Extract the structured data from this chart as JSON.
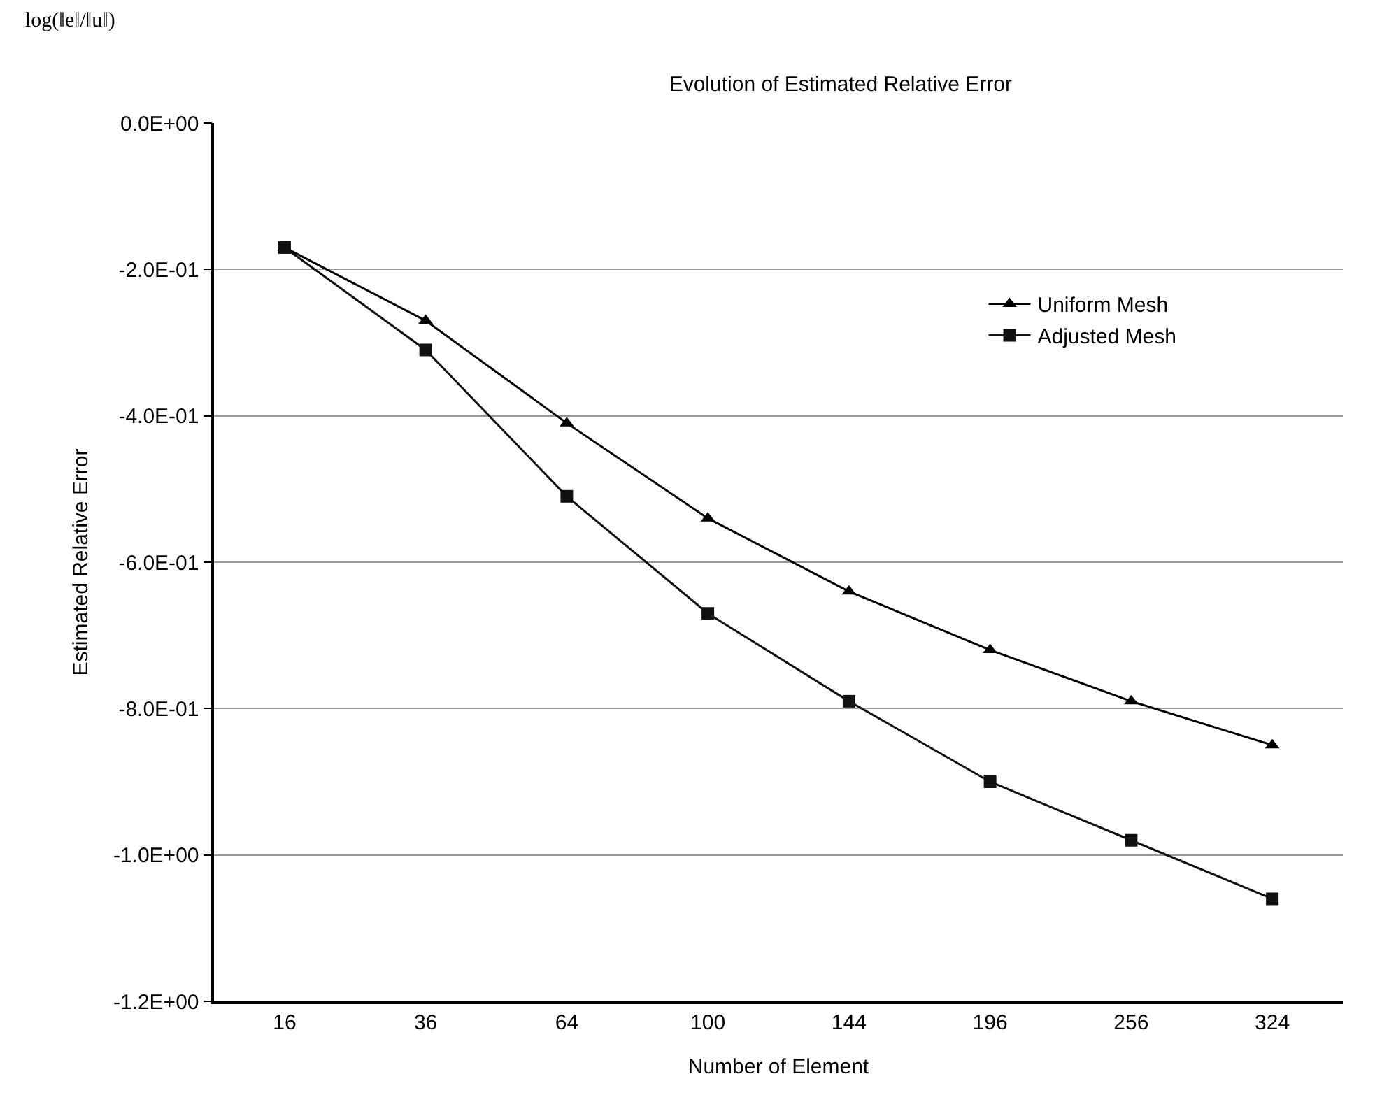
{
  "chart_data": {
    "type": "line",
    "title": "Evolution of Estimated Relative Error",
    "xlabel": "Number of Element",
    "ylabel": "Estimated Relative Error",
    "annotations": [
      "log(‖e‖/‖u‖)"
    ],
    "categories": [
      "16",
      "36",
      "64",
      "100",
      "144",
      "196",
      "256",
      "324"
    ],
    "series": [
      {
        "name": "Uniform Mesh",
        "color": "#000000",
        "marker": "triangle",
        "values": [
          -0.17,
          -0.27,
          -0.41,
          -0.54,
          -0.64,
          -0.72,
          -0.79,
          -0.85
        ]
      },
      {
        "name": "Adjusted Mesh",
        "color": "#111111",
        "marker": "square",
        "values": [
          -0.17,
          -0.31,
          -0.51,
          -0.67,
          -0.79,
          -0.9,
          -0.98,
          -1.06
        ]
      }
    ],
    "ylim": [
      -1.2,
      0
    ],
    "yticks": [
      {
        "value": -1.2,
        "label": "-1.2E+00"
      },
      {
        "value": -1.0,
        "label": "-1.0E+00"
      },
      {
        "value": -0.8,
        "label": "-8.0E-01"
      },
      {
        "value": -0.6,
        "label": "-6.0E-01"
      },
      {
        "value": -0.4,
        "label": "-4.0E-01"
      },
      {
        "value": -0.2,
        "label": "-2.0E-01"
      },
      {
        "value": 0,
        "label": "0.0E+00"
      }
    ],
    "grid": "y",
    "legend": "top right",
    "line_style": "solid"
  }
}
